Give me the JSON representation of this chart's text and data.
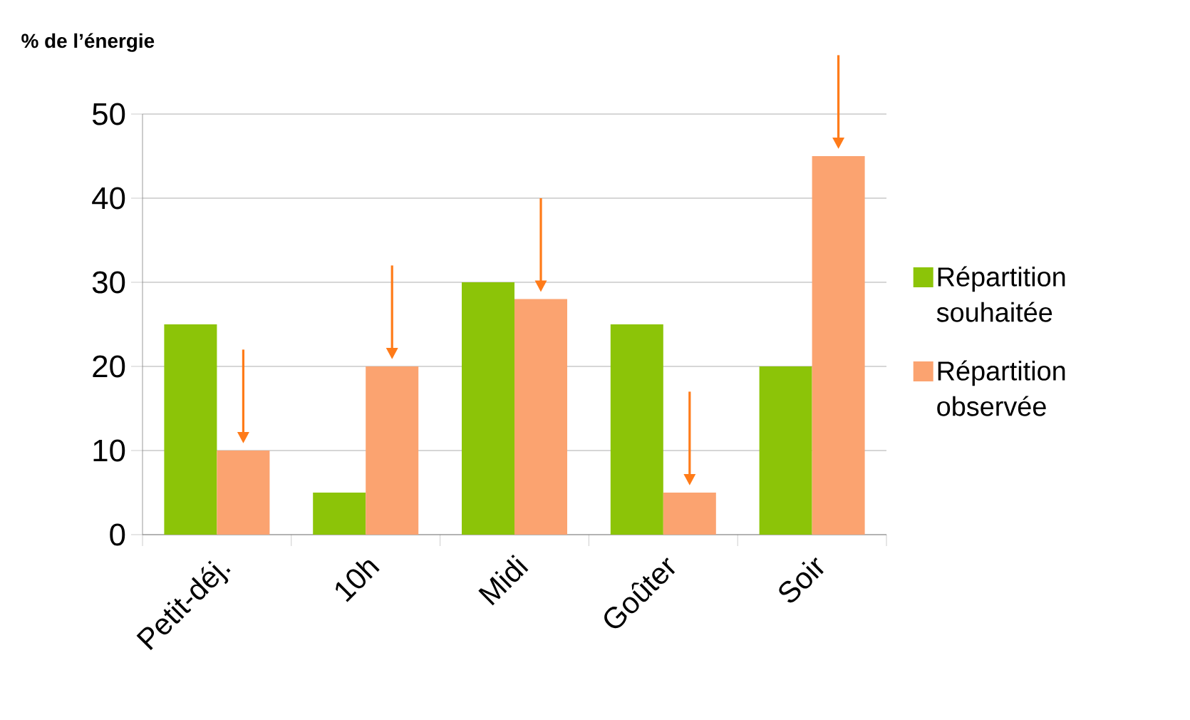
{
  "chart_data": {
    "type": "bar",
    "ylabel": "% de l’énergie",
    "categories": [
      "Petit-déj.",
      "10h",
      "Midi",
      "Goûter",
      "Soir"
    ],
    "series": [
      {
        "name": "Répartition souhaitée",
        "color": "#8cc408",
        "values": [
          25,
          5,
          30,
          25,
          20
        ]
      },
      {
        "name": "Répartition observée",
        "color": "#fba370",
        "values": [
          10,
          20,
          28,
          5,
          45
        ]
      }
    ],
    "ylim": [
      0,
      50
    ],
    "yticks": [
      0,
      10,
      20,
      30,
      40,
      50
    ],
    "grid": "y",
    "legend": "right"
  }
}
